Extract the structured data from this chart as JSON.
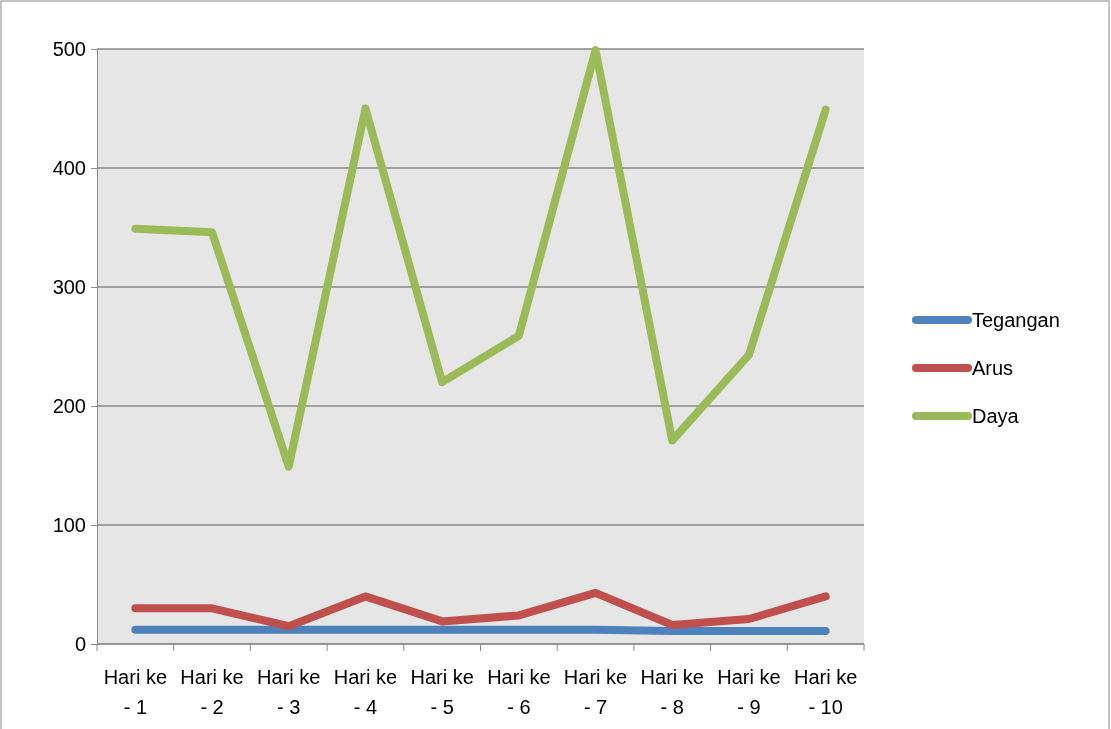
{
  "chart_data": {
    "type": "line",
    "categories": [
      "Hari ke - 1",
      "Hari ke - 2",
      "Hari ke - 3",
      "Hari ke - 4",
      "Hari ke - 5",
      "Hari ke - 6",
      "Hari ke - 7",
      "Hari ke - 8",
      "Hari ke - 9",
      "Hari ke - 10"
    ],
    "series": [
      {
        "name": "Tegangan",
        "color": "#4f81bd",
        "values": [
          12,
          12,
          12,
          12,
          12,
          12,
          12,
          11,
          11,
          11
        ]
      },
      {
        "name": "Arus",
        "color": "#c0504d",
        "values": [
          30,
          30,
          15,
          40,
          19,
          24,
          43,
          16,
          21,
          40
        ]
      },
      {
        "name": "Daya",
        "color": "#9bbb59",
        "values": [
          349,
          346,
          149,
          450,
          220,
          259,
          499,
          171,
          243,
          449
        ]
      }
    ],
    "ylim": [
      0,
      500
    ],
    "yticks": [
      0,
      100,
      200,
      300,
      400,
      500
    ],
    "grid": "y",
    "legend": "right",
    "marker": "none",
    "line_style": "solid"
  }
}
